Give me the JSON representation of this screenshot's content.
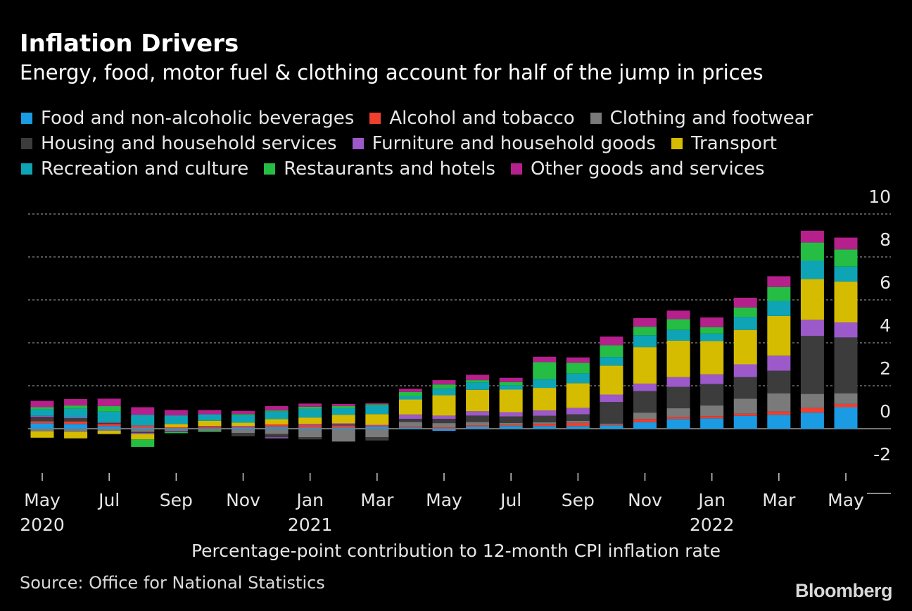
{
  "header": {
    "title": "Inflation Drivers",
    "subtitle": "Energy, food, motor fuel & clothing account for half of the jump in prices"
  },
  "footer": {
    "xlabel": "Percentage-point contribution to 12-month CPI inflation rate",
    "source": "Source: Office for National Statistics",
    "brand": "Bloomberg"
  },
  "chart_data": {
    "type": "bar",
    "stacked": true,
    "title": "Inflation Drivers",
    "subtitle": "Energy, food, motor fuel & clothing account for half of the jump in prices",
    "xlabel": "Percentage-point contribution to 12-month CPI inflation rate",
    "ylabel": "",
    "ylim": [
      -2,
      10
    ],
    "yticks": [
      -2,
      0,
      2,
      4,
      6,
      8,
      10
    ],
    "grid": true,
    "legend_position": "top",
    "categories": [
      "May 2020",
      "Jun 2020",
      "Jul 2020",
      "Aug 2020",
      "Sep 2020",
      "Oct 2020",
      "Nov 2020",
      "Dec 2020",
      "Jan 2021",
      "Feb 2021",
      "Mar 2021",
      "Apr 2021",
      "May 2021",
      "Jun 2021",
      "Jul 2021",
      "Aug 2021",
      "Sep 2021",
      "Oct 2021",
      "Nov 2021",
      "Dec 2021",
      "Jan 2022",
      "Feb 2022",
      "Mar 2022",
      "Apr 2022",
      "May 2022"
    ],
    "x_tick_labels": [
      {
        "index": 0,
        "month": "May",
        "year": "2020"
      },
      {
        "index": 2,
        "month": "Jul",
        "year": ""
      },
      {
        "index": 4,
        "month": "Sep",
        "year": ""
      },
      {
        "index": 6,
        "month": "Nov",
        "year": ""
      },
      {
        "index": 8,
        "month": "Jan",
        "year": "2021"
      },
      {
        "index": 10,
        "month": "Mar",
        "year": ""
      },
      {
        "index": 12,
        "month": "May",
        "year": ""
      },
      {
        "index": 14,
        "month": "Jul",
        "year": ""
      },
      {
        "index": 16,
        "month": "Sep",
        "year": ""
      },
      {
        "index": 18,
        "month": "Nov",
        "year": ""
      },
      {
        "index": 20,
        "month": "Jan",
        "year": "2022"
      },
      {
        "index": 22,
        "month": "Mar",
        "year": ""
      },
      {
        "index": 24,
        "month": "May",
        "year": ""
      }
    ],
    "series": [
      {
        "name": "Food and non-alcoholic beverages",
        "color": "#1a9be3",
        "values": [
          0.25,
          0.22,
          0.12,
          0.05,
          0.03,
          0.02,
          0.05,
          0.08,
          0.05,
          0.05,
          0.1,
          0.06,
          -0.1,
          0.1,
          0.12,
          0.12,
          0.12,
          0.15,
          0.3,
          0.45,
          0.48,
          0.6,
          0.65,
          0.75,
          1.0
        ]
      },
      {
        "name": "Alcohol and tobacco",
        "color": "#ee3f2f",
        "values": [
          0.1,
          0.12,
          0.1,
          0.1,
          0.04,
          0.05,
          0.05,
          0.12,
          0.12,
          0.1,
          0.05,
          0.05,
          0.06,
          0.06,
          0.05,
          0.1,
          0.15,
          0.04,
          0.15,
          0.1,
          0.1,
          0.1,
          0.15,
          0.22,
          0.15
        ]
      },
      {
        "name": "Clothing and footwear",
        "color": "#7a7a7a",
        "values": [
          -0.12,
          -0.15,
          -0.1,
          -0.15,
          -0.1,
          -0.1,
          -0.2,
          -0.25,
          -0.4,
          -0.6,
          -0.4,
          0.2,
          0.2,
          0.15,
          0.1,
          0.08,
          0.1,
          0.05,
          0.3,
          0.4,
          0.5,
          0.7,
          0.85,
          0.65,
          0.5
        ]
      },
      {
        "name": "Housing and household services",
        "color": "#3c3c3c",
        "values": [
          0.2,
          0.15,
          0.05,
          -0.05,
          -0.03,
          0.02,
          -0.15,
          -0.15,
          -0.1,
          0.05,
          -0.15,
          0.15,
          0.2,
          0.3,
          0.3,
          0.3,
          0.3,
          1.0,
          1.0,
          1.0,
          1.0,
          1.0,
          1.05,
          2.7,
          2.6
        ]
      },
      {
        "name": "Furniture and household goods",
        "color": "#9b59c9",
        "values": [
          0.05,
          0.04,
          0.03,
          -0.05,
          -0.03,
          0.03,
          0.03,
          -0.05,
          0.05,
          0.05,
          0.03,
          0.2,
          0.15,
          0.2,
          0.2,
          0.25,
          0.3,
          0.35,
          0.35,
          0.45,
          0.45,
          0.6,
          0.7,
          0.75,
          0.7
        ]
      },
      {
        "name": "Transport",
        "color": "#d6bc00",
        "values": [
          -0.3,
          -0.3,
          -0.15,
          -0.25,
          0.15,
          0.25,
          0.15,
          0.25,
          0.3,
          0.4,
          0.5,
          0.7,
          0.95,
          1.0,
          1.05,
          1.05,
          1.15,
          1.35,
          1.7,
          1.7,
          1.55,
          1.6,
          1.85,
          1.9,
          1.9
        ]
      },
      {
        "name": "Recreation and culture",
        "color": "#0ea4b6",
        "values": [
          0.3,
          0.4,
          0.5,
          0.5,
          0.4,
          0.3,
          0.35,
          0.35,
          0.4,
          0.3,
          0.4,
          0.15,
          0.3,
          0.35,
          0.2,
          0.4,
          0.45,
          0.4,
          0.55,
          0.5,
          0.35,
          0.6,
          0.7,
          0.85,
          0.7
        ]
      },
      {
        "name": "Restaurants and hotels",
        "color": "#25bd43",
        "values": [
          0.1,
          0.15,
          0.25,
          -0.35,
          -0.05,
          -0.05,
          0.05,
          0.05,
          0.1,
          0.1,
          0.05,
          0.2,
          0.2,
          0.1,
          0.15,
          0.8,
          0.5,
          0.55,
          0.4,
          0.5,
          0.3,
          0.45,
          0.65,
          0.85,
          0.8
        ]
      },
      {
        "name": "Other goods and services",
        "color": "#b5208c",
        "values": [
          0.3,
          0.3,
          0.35,
          0.35,
          0.25,
          0.2,
          0.15,
          0.2,
          0.15,
          0.1,
          0.05,
          0.15,
          0.2,
          0.25,
          0.2,
          0.25,
          0.25,
          0.4,
          0.4,
          0.4,
          0.45,
          0.45,
          0.5,
          0.55,
          0.55
        ]
      }
    ]
  }
}
